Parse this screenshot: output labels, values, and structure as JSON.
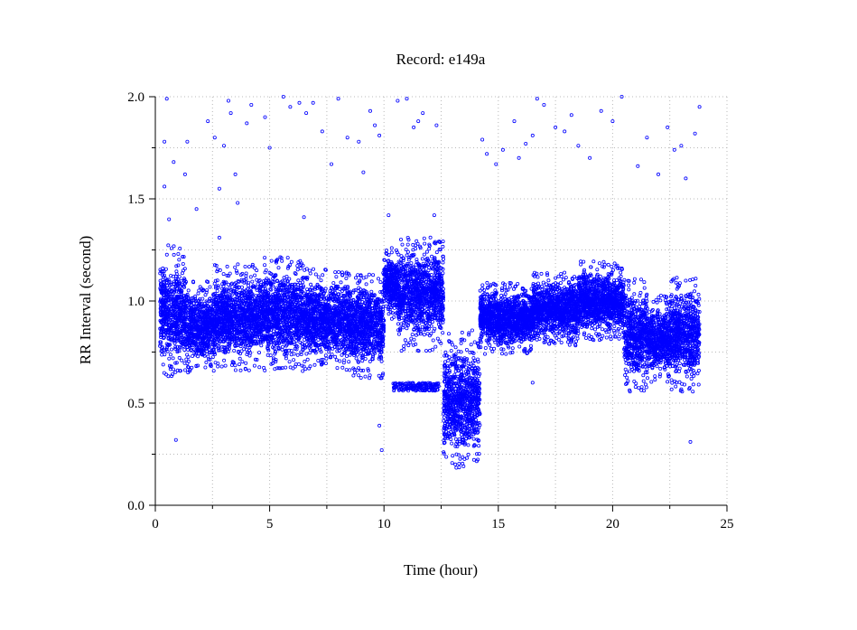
{
  "chart_data": {
    "type": "scatter",
    "title": "Record:  e149a",
    "xlabel": "Time (hour)",
    "ylabel": "RR Interval (second)",
    "xlim": [
      0,
      25
    ],
    "ylim": [
      0.0,
      2.0
    ],
    "x_ticks": [
      "0",
      "5",
      "10",
      "15",
      "20",
      "25"
    ],
    "y_ticks": [
      "0.0",
      "0.5",
      "1.0",
      "1.5",
      "2.0"
    ],
    "grid": true,
    "marker": "hollow-circle",
    "point_color": "#0000ff",
    "dense_segments": [
      {
        "x_start": 0.2,
        "x_end": 1.3,
        "y_low": 0.7,
        "y_high": 1.2
      },
      {
        "x_start": 1.3,
        "x_end": 2.6,
        "y_low": 0.7,
        "y_high": 1.05
      },
      {
        "x_start": 2.6,
        "x_end": 4.5,
        "y_low": 0.72,
        "y_high": 1.12
      },
      {
        "x_start": 4.5,
        "x_end": 6.5,
        "y_low": 0.72,
        "y_high": 1.15
      },
      {
        "x_start": 6.5,
        "x_end": 8.5,
        "y_low": 0.72,
        "y_high": 1.1
      },
      {
        "x_start": 8.5,
        "x_end": 10.0,
        "y_low": 0.68,
        "y_high": 1.08
      },
      {
        "x_start": 10.0,
        "x_end": 10.6,
        "y_low": 0.95,
        "y_high": 1.22
      },
      {
        "x_start": 10.6,
        "x_end": 12.6,
        "y_low": 0.82,
        "y_high": 1.25
      },
      {
        "x_start": 12.6,
        "x_end": 14.2,
        "y_low": 0.26,
        "y_high": 0.78
      },
      {
        "x_start": 14.2,
        "x_end": 16.5,
        "y_low": 0.78,
        "y_high": 1.05
      },
      {
        "x_start": 16.5,
        "x_end": 18.5,
        "y_low": 0.82,
        "y_high": 1.1
      },
      {
        "x_start": 18.5,
        "x_end": 20.5,
        "y_low": 0.85,
        "y_high": 1.15
      },
      {
        "x_start": 20.5,
        "x_end": 21.5,
        "y_low": 0.62,
        "y_high": 1.05
      },
      {
        "x_start": 21.5,
        "x_end": 22.5,
        "y_low": 0.65,
        "y_high": 0.98
      },
      {
        "x_start": 22.5,
        "x_end": 23.8,
        "y_low": 0.62,
        "y_high": 1.05
      }
    ],
    "low_band_segment": {
      "x_start": 10.4,
      "x_end": 12.4,
      "y_low": 0.56,
      "y_high": 0.6
    },
    "outliers": [
      [
        0.5,
        1.99
      ],
      [
        0.4,
        1.78
      ],
      [
        0.4,
        1.56
      ],
      [
        0.6,
        1.4
      ],
      [
        0.8,
        1.68
      ],
      [
        1.3,
        1.62
      ],
      [
        1.8,
        1.45
      ],
      [
        2.3,
        1.88
      ],
      [
        2.6,
        1.8
      ],
      [
        2.8,
        1.55
      ],
      [
        3.0,
        1.76
      ],
      [
        3.2,
        1.98
      ],
      [
        3.3,
        1.92
      ],
      [
        3.5,
        1.62
      ],
      [
        3.6,
        1.48
      ],
      [
        4.0,
        1.87
      ],
      [
        4.2,
        1.96
      ],
      [
        4.8,
        1.9
      ],
      [
        5.0,
        1.75
      ],
      [
        5.6,
        2.0
      ],
      [
        5.9,
        1.95
      ],
      [
        6.3,
        1.97
      ],
      [
        6.6,
        1.92
      ],
      [
        6.9,
        1.97
      ],
      [
        7.3,
        1.83
      ],
      [
        7.7,
        1.67
      ],
      [
        8.0,
        1.99
      ],
      [
        8.4,
        1.8
      ],
      [
        8.9,
        1.78
      ],
      [
        9.4,
        1.93
      ],
      [
        9.6,
        1.86
      ],
      [
        9.8,
        1.81
      ],
      [
        10.6,
        1.98
      ],
      [
        11.0,
        1.99
      ],
      [
        11.3,
        1.85
      ],
      [
        11.5,
        1.88
      ],
      [
        11.7,
        1.92
      ],
      [
        12.3,
        1.86
      ],
      [
        12.2,
        1.42
      ],
      [
        14.3,
        1.79
      ],
      [
        14.5,
        1.72
      ],
      [
        14.9,
        1.67
      ],
      [
        15.2,
        1.74
      ],
      [
        15.7,
        1.88
      ],
      [
        15.9,
        1.7
      ],
      [
        16.2,
        1.77
      ],
      [
        16.5,
        1.81
      ],
      [
        16.7,
        1.99
      ],
      [
        17.0,
        1.96
      ],
      [
        17.5,
        1.85
      ],
      [
        17.9,
        1.83
      ],
      [
        18.2,
        1.91
      ],
      [
        18.5,
        1.76
      ],
      [
        19.0,
        1.7
      ],
      [
        19.5,
        1.93
      ],
      [
        20.0,
        1.88
      ],
      [
        20.4,
        2.0
      ],
      [
        21.1,
        1.66
      ],
      [
        21.5,
        1.8
      ],
      [
        22.0,
        1.62
      ],
      [
        22.4,
        1.85
      ],
      [
        22.7,
        1.74
      ],
      [
        23.0,
        1.76
      ],
      [
        23.2,
        1.6
      ],
      [
        23.6,
        1.82
      ],
      [
        23.8,
        1.95
      ],
      [
        0.9,
        0.32
      ],
      [
        9.8,
        0.39
      ],
      [
        9.9,
        0.27
      ],
      [
        23.4,
        0.31
      ],
      [
        2.8,
        1.31
      ],
      [
        6.5,
        1.41
      ],
      [
        10.2,
        1.42
      ],
      [
        1.4,
        1.78
      ],
      [
        9.1,
        1.63
      ],
      [
        12.0,
        1.27
      ],
      [
        16.5,
        0.6
      ]
    ]
  }
}
